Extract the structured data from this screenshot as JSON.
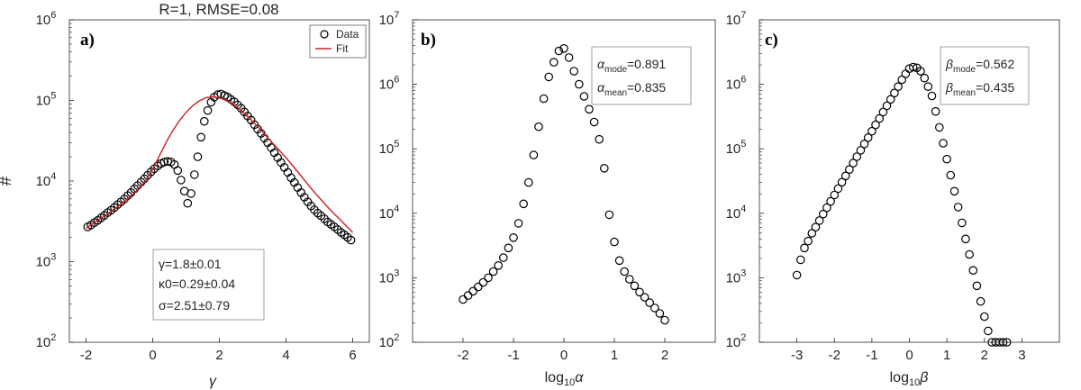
{
  "chart_data": [
    {
      "type": "scatter",
      "panel_label": "a)",
      "title": "R=1, RMSE=0.08",
      "xlabel": "γ",
      "ylabel": "#",
      "yscale": "log",
      "xlim": [
        -2.5,
        6.5
      ],
      "ylim": [
        100,
        1000000
      ],
      "xticks": [
        -2,
        0,
        2,
        4,
        6
      ],
      "xtick_labels": [
        "-2",
        "0",
        "2",
        "4",
        "6"
      ],
      "ytick_exponents": [
        2,
        3,
        4,
        5,
        6
      ],
      "legend": {
        "position": "top-right",
        "entries": [
          "Data",
          "Fit"
        ]
      },
      "annotation": [
        "γ=1.8±0.01",
        "κ0=0.29±0.04",
        "σ=2.51±0.79"
      ],
      "series": [
        {
          "name": "Data",
          "marker": "circle",
          "x": [
            -1.95,
            -1.85,
            -1.75,
            -1.65,
            -1.55,
            -1.45,
            -1.35,
            -1.25,
            -1.15,
            -1.05,
            -0.95,
            -0.85,
            -0.75,
            -0.65,
            -0.55,
            -0.45,
            -0.35,
            -0.25,
            -0.15,
            -0.05,
            0.05,
            0.15,
            0.25,
            0.35,
            0.45,
            0.55,
            0.65,
            0.75,
            0.85,
            0.95,
            1.05,
            1.15,
            1.25,
            1.35,
            1.45,
            1.55,
            1.65,
            1.75,
            1.85,
            1.95,
            2.05,
            2.15,
            2.25,
            2.35,
            2.45,
            2.55,
            2.65,
            2.75,
            2.85,
            2.95,
            3.05,
            3.15,
            3.25,
            3.35,
            3.45,
            3.55,
            3.65,
            3.75,
            3.85,
            3.95,
            4.05,
            4.15,
            4.25,
            4.35,
            4.45,
            4.55,
            4.65,
            4.75,
            4.85,
            4.95,
            5.05,
            5.15,
            5.25,
            5.35,
            5.45,
            5.55,
            5.65,
            5.75,
            5.85,
            5.95
          ],
          "y": [
            2700,
            2850,
            3050,
            3250,
            3500,
            3750,
            4050,
            4350,
            4700,
            5100,
            5500,
            6000,
            6600,
            7200,
            8000,
            8800,
            9700,
            10700,
            11800,
            13000,
            14200,
            15400,
            16500,
            17200,
            17500,
            17200,
            16000,
            13500,
            10300,
            7500,
            5300,
            7000,
            12000,
            20000,
            35000,
            55000,
            75000,
            95000,
            110000,
            118000,
            120000,
            115000,
            110000,
            103000,
            96000,
            88000,
            80000,
            72000,
            64000,
            57000,
            50000,
            44000,
            39000,
            34000,
            30000,
            26000,
            22500,
            19500,
            17000,
            14800,
            12800,
            11000,
            9600,
            8300,
            7200,
            6300,
            5500,
            4900,
            4400,
            4000,
            3700,
            3400,
            3100,
            2900,
            2700,
            2500,
            2300,
            2150,
            2000,
            1850
          ]
        },
        {
          "name": "Fit",
          "marker": "line",
          "color": "#cc2020",
          "x": [
            -2.0,
            -1.8,
            -1.6,
            -1.4,
            -1.2,
            -1.0,
            -0.8,
            -0.6,
            -0.4,
            -0.2,
            0.0,
            0.2,
            0.4,
            0.6,
            0.8,
            1.0,
            1.2,
            1.4,
            1.6,
            1.8,
            2.0,
            2.2,
            2.4,
            2.6,
            2.8,
            3.0,
            3.2,
            3.4,
            3.6,
            3.8,
            4.0,
            4.2,
            4.4,
            4.6,
            4.8,
            5.0,
            5.2,
            5.4,
            5.6,
            5.8,
            6.0
          ],
          "y": [
            2600,
            2950,
            3350,
            3800,
            4350,
            5000,
            5800,
            6800,
            8200,
            10200,
            14000,
            20500,
            30000,
            42000,
            56000,
            71000,
            86000,
            99000,
            108000,
            111000,
            108000,
            100000,
            90000,
            78000,
            66000,
            55000,
            45000,
            36500,
            29500,
            24000,
            19500,
            15500,
            12300,
            9700,
            7700,
            6200,
            5000,
            4100,
            3400,
            2800,
            2300
          ]
        }
      ]
    },
    {
      "type": "scatter",
      "panel_label": "b)",
      "xlabel": "log10α",
      "yscale": "log",
      "xlim": [
        -3,
        3
      ],
      "ylim": [
        100,
        10000000
      ],
      "xticks": [
        -2,
        -1,
        0,
        1,
        2
      ],
      "xtick_labels": [
        "-2",
        "-1",
        "0",
        "1",
        "2"
      ],
      "ytick_exponents": [
        2,
        3,
        4,
        5,
        6,
        7
      ],
      "annotation": [
        {
          "symbol": "α",
          "subscript": "mode",
          "value": "=0.891"
        },
        {
          "symbol": "α",
          "subscript": "mean",
          "value": "=0.835"
        }
      ],
      "series": [
        {
          "name": "Data",
          "marker": "circle",
          "x": [
            -2.0,
            -1.9,
            -1.8,
            -1.7,
            -1.6,
            -1.5,
            -1.4,
            -1.3,
            -1.2,
            -1.1,
            -1.0,
            -0.9,
            -0.8,
            -0.7,
            -0.6,
            -0.5,
            -0.4,
            -0.3,
            -0.2,
            -0.1,
            0.0,
            0.1,
            0.2,
            0.3,
            0.4,
            0.5,
            0.6,
            0.7,
            0.8,
            0.9,
            1.0,
            1.1,
            1.2,
            1.3,
            1.4,
            1.5,
            1.6,
            1.7,
            1.8,
            1.9,
            2.0
          ],
          "y": [
            460,
            530,
            620,
            720,
            850,
            1000,
            1250,
            1550,
            2050,
            2900,
            4200,
            7000,
            14000,
            30000,
            80000,
            220000,
            600000,
            1300000,
            2200000,
            3300000,
            3600000,
            2600000,
            1600000,
            1000000,
            650000,
            410000,
            260000,
            140000,
            50000,
            9500,
            3600,
            1850,
            1250,
            950,
            750,
            600,
            500,
            410,
            340,
            280,
            220
          ]
        }
      ]
    },
    {
      "type": "scatter",
      "panel_label": "c)",
      "xlabel": "log10β",
      "yscale": "log",
      "xlim": [
        -4,
        4
      ],
      "ylim": [
        100,
        10000000
      ],
      "xticks": [
        -3,
        -2,
        -1,
        0,
        1,
        2,
        3
      ],
      "xtick_labels": [
        "-3",
        "-2",
        "-1",
        "0",
        "1",
        "2",
        "3"
      ],
      "ytick_exponents": [
        2,
        3,
        4,
        5,
        6,
        7
      ],
      "annotation": [
        {
          "symbol": "β",
          "subscript": "mode",
          "value": "=0.562"
        },
        {
          "symbol": "β",
          "subscript": "mean",
          "value": "=0.435"
        }
      ],
      "series": [
        {
          "name": "Data",
          "marker": "circle",
          "x": [
            -3.0,
            -2.9,
            -2.8,
            -2.7,
            -2.6,
            -2.5,
            -2.4,
            -2.3,
            -2.2,
            -2.1,
            -2.0,
            -1.9,
            -1.8,
            -1.7,
            -1.6,
            -1.5,
            -1.4,
            -1.3,
            -1.2,
            -1.1,
            -1.0,
            -0.9,
            -0.8,
            -0.7,
            -0.6,
            -0.5,
            -0.4,
            -0.3,
            -0.2,
            -0.1,
            0.0,
            0.1,
            0.2,
            0.3,
            0.4,
            0.5,
            0.6,
            0.7,
            0.8,
            0.9,
            1.0,
            1.1,
            1.2,
            1.3,
            1.4,
            1.5,
            1.6,
            1.7,
            1.8,
            1.9,
            2.0,
            2.1,
            2.2,
            2.3,
            2.4,
            2.5,
            2.6
          ],
          "y": [
            1100,
            1900,
            2900,
            3700,
            4900,
            6100,
            7700,
            9700,
            12200,
            15300,
            19200,
            24100,
            30300,
            38000,
            47700,
            59900,
            75300,
            94600,
            118900,
            149000,
            187000,
            235000,
            295000,
            371000,
            465000,
            584000,
            733000,
            920000,
            1180000,
            1450000,
            1750000,
            1850000,
            1800000,
            1600000,
            1250000,
            920000,
            660000,
            380000,
            215000,
            122000,
            69000,
            39000,
            22000,
            12500,
            7100,
            4000,
            2300,
            1300,
            750,
            430,
            250,
            150,
            100,
            100,
            100,
            100,
            100
          ]
        }
      ]
    }
  ]
}
